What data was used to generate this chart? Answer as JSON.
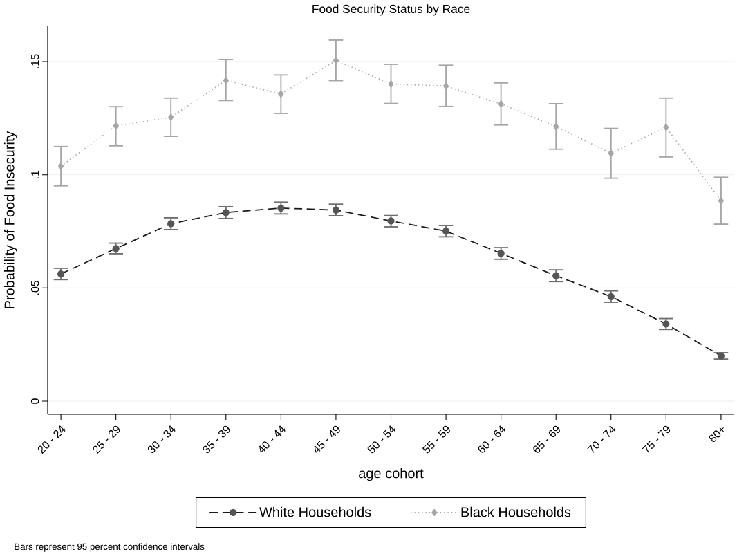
{
  "chart_data": {
    "type": "line",
    "title": "Food Security Status by Race",
    "xlabel": "age cohort",
    "ylabel": "Probability of Food Insecurity",
    "categories": [
      "20 - 24",
      "25 - 29",
      "30 - 34",
      "35 - 39",
      "40 - 44",
      "45 - 49",
      "50 - 54",
      "55 - 59",
      "60 - 64",
      "65 - 69",
      "70 - 74",
      "75 - 79",
      "80+"
    ],
    "ylim": [
      -0.0058,
      0.1656
    ],
    "yticks": [
      0,
      {
        "value": 0.05,
        "label": ".05"
      },
      {
        "value": 0.1,
        "label": ".1"
      },
      {
        "value": 0.15,
        "label": ".15"
      }
    ],
    "grid": "y",
    "legend": "bottom",
    "annotations": [
      "Bars represent 95 percent confidence intervals"
    ],
    "series": [
      {
        "name": "White Households",
        "color": "#1a1a1a",
        "marker": "circle",
        "line_style": "dashed",
        "values": [
          0.0562,
          0.0674,
          0.0784,
          0.0833,
          0.0853,
          0.0844,
          0.0796,
          0.0751,
          0.0653,
          0.0554,
          0.0462,
          0.0341,
          0.02
        ],
        "errors": [
          [
            0.0537,
            0.0587
          ],
          [
            0.0651,
            0.0698
          ],
          [
            0.0758,
            0.081
          ],
          [
            0.0807,
            0.0859
          ],
          [
            0.0827,
            0.0879
          ],
          [
            0.0819,
            0.087
          ],
          [
            0.077,
            0.082
          ],
          [
            0.0726,
            0.0776
          ],
          [
            0.0627,
            0.0678
          ],
          [
            0.0528,
            0.058
          ],
          [
            0.0437,
            0.0487
          ],
          [
            0.0317,
            0.0365
          ],
          [
            0.0186,
            0.0214
          ]
        ]
      },
      {
        "name": "Black Households",
        "color": "#a6a6a6",
        "marker": "diamond",
        "line_style": "dotted",
        "values": [
          0.1038,
          0.1216,
          0.1254,
          0.1417,
          0.1357,
          0.1505,
          0.1401,
          0.1392,
          0.1313,
          0.1213,
          0.1095,
          0.121,
          0.0885
        ],
        "errors": [
          [
            0.0951,
            0.1125
          ],
          [
            0.1128,
            0.1301
          ],
          [
            0.117,
            0.1339
          ],
          [
            0.1328,
            0.1509
          ],
          [
            0.1271,
            0.1441
          ],
          [
            0.1416,
            0.1595
          ],
          [
            0.1315,
            0.1488
          ],
          [
            0.1302,
            0.1484
          ],
          [
            0.122,
            0.1406
          ],
          [
            0.1113,
            0.1314
          ],
          [
            0.0985,
            0.1205
          ],
          [
            0.1079,
            0.1339
          ],
          [
            0.0782,
            0.0989
          ]
        ]
      }
    ]
  }
}
